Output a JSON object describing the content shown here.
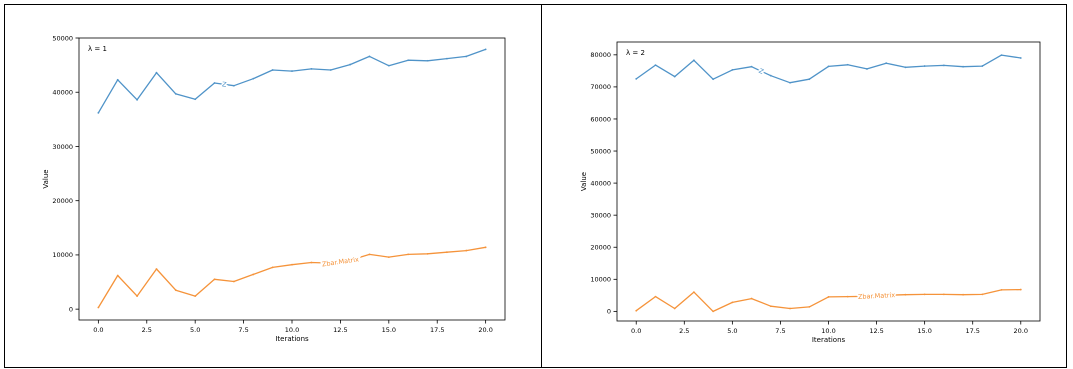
{
  "chart_data": [
    {
      "type": "line",
      "annotation": "λ = 1",
      "xlabel": "Iterations",
      "ylabel": "Value",
      "xlim": [
        -1,
        21
      ],
      "ylim": [
        -2000,
        50000
      ],
      "xticks": [
        0,
        2.5,
        5,
        7.5,
        10,
        12.5,
        15,
        17.5,
        20
      ],
      "xtick_labels": [
        "0.0",
        "2.5",
        "5.0",
        "7.5",
        "10.0",
        "12.5",
        "15.0",
        "17.5",
        "20.0"
      ],
      "yticks": [
        0,
        10000,
        20000,
        30000,
        40000,
        50000
      ],
      "ytick_labels": [
        "0",
        "10000",
        "20000",
        "30000",
        "40000",
        "50000"
      ],
      "grid": false,
      "colors": {
        "Z": "#4f93c8",
        "Zbar.Matrix": "#f5933a"
      },
      "series": [
        {
          "name": "Z",
          "label_at": 6.5,
          "x": [
            0,
            1,
            2,
            3,
            4,
            5,
            6,
            7,
            8,
            9,
            10,
            11,
            12,
            13,
            14,
            15,
            16,
            17,
            18,
            19,
            20
          ],
          "values": [
            36200,
            42300,
            38600,
            43600,
            39700,
            38700,
            41700,
            41200,
            42500,
            44100,
            43900,
            44300,
            44100,
            45100,
            46600,
            44900,
            45900,
            45800,
            46200,
            46600,
            47900
          ]
        },
        {
          "name": "Zbar.Matrix",
          "label_at": 12.5,
          "x": [
            0,
            1,
            2,
            3,
            4,
            5,
            6,
            7,
            8,
            9,
            10,
            11,
            12,
            13,
            14,
            15,
            16,
            17,
            18,
            19,
            20
          ],
          "values": [
            300,
            6200,
            2400,
            7400,
            3500,
            2400,
            5500,
            5100,
            6400,
            7700,
            8200,
            8600,
            8500,
            9000,
            10100,
            9600,
            10100,
            10200,
            10500,
            10800,
            11400
          ]
        }
      ]
    },
    {
      "type": "line",
      "annotation": "λ = 2",
      "xlabel": "Iterations",
      "ylabel": "Value",
      "xlim": [
        -1,
        21
      ],
      "ylim": [
        -3000,
        84000
      ],
      "xticks": [
        0,
        2.5,
        5,
        7.5,
        10,
        12.5,
        15,
        17.5,
        20
      ],
      "xtick_labels": [
        "0.0",
        "2.5",
        "5.0",
        "7.5",
        "10.0",
        "12.5",
        "15.0",
        "17.5",
        "20.0"
      ],
      "yticks": [
        0,
        10000,
        20000,
        30000,
        40000,
        50000,
        60000,
        70000,
        80000
      ],
      "ytick_labels": [
        "0",
        "10000",
        "20000",
        "30000",
        "40000",
        "50000",
        "60000",
        "70000",
        "80000"
      ],
      "grid": false,
      "colors": {
        "Z": "#4f93c8",
        "Zbar.Matrix": "#f5933a"
      },
      "series": [
        {
          "name": "Z",
          "label_at": 6.5,
          "x": [
            0,
            1,
            2,
            3,
            4,
            5,
            6,
            7,
            8,
            9,
            10,
            11,
            12,
            13,
            14,
            15,
            16,
            17,
            18,
            19,
            20
          ],
          "values": [
            72500,
            76800,
            73200,
            78300,
            72400,
            75300,
            76300,
            73500,
            71300,
            72400,
            76400,
            76900,
            75600,
            77400,
            76100,
            76500,
            76700,
            76300,
            76500,
            79900,
            79000
          ]
        },
        {
          "name": "Zbar.Matrix",
          "label_at": 12.5,
          "x": [
            0,
            1,
            2,
            3,
            4,
            5,
            6,
            7,
            8,
            9,
            10,
            11,
            12,
            13,
            14,
            15,
            16,
            17,
            18,
            19,
            20
          ],
          "values": [
            200,
            4600,
            900,
            6000,
            0,
            2800,
            4000,
            1600,
            900,
            1400,
            4500,
            4600,
            4700,
            5000,
            5200,
            5300,
            5300,
            5200,
            5300,
            6700,
            6800
          ]
        }
      ]
    }
  ]
}
